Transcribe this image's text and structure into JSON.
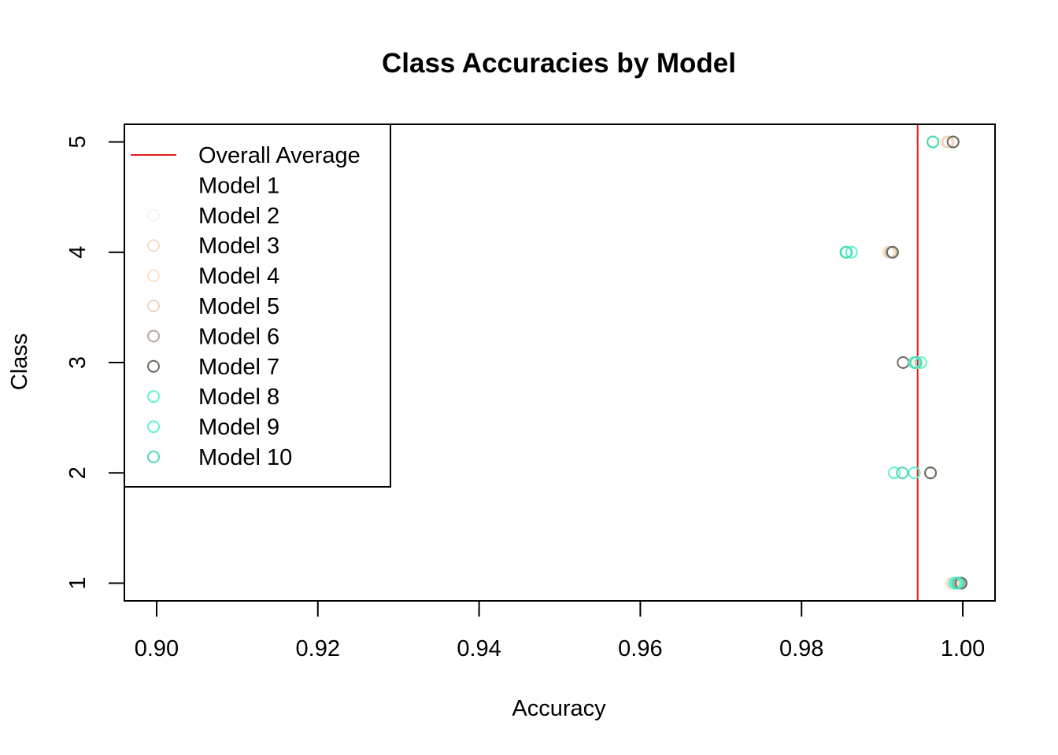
{
  "chart_data": {
    "type": "scatter",
    "title": "Class Accuracies by Model",
    "xlabel": "Accuracy",
    "ylabel": "Class",
    "xlim": [
      0.896,
      1.004
    ],
    "ylim": [
      0.84,
      5.16
    ],
    "x_ticks": [
      0.9,
      0.92,
      0.94,
      0.96,
      0.98,
      1.0
    ],
    "x_tick_labels": [
      "0.90",
      "0.92",
      "0.94",
      "0.96",
      "0.98",
      "1.00"
    ],
    "y_ticks": [
      1,
      2,
      3,
      4,
      5
    ],
    "y_tick_labels": [
      "1",
      "2",
      "3",
      "4",
      "5"
    ],
    "grid": false,
    "legend_position": "top-left",
    "reference_line": {
      "label": "Overall Average",
      "x": 0.9944,
      "color": "#e31a1c"
    },
    "series": [
      {
        "name": "Model 1",
        "color": "#ffffff",
        "points": [
          {
            "x": 0.999,
            "y": 1
          },
          {
            "x": 0.996,
            "y": 2
          },
          {
            "x": 0.9945,
            "y": 3
          },
          {
            "x": 0.9915,
            "y": 4
          },
          {
            "x": 0.9985,
            "y": 5
          }
        ]
      },
      {
        "name": "Model 2",
        "color": "#f6f3ee",
        "points": [
          {
            "x": 0.9992,
            "y": 1
          },
          {
            "x": 0.996,
            "y": 2
          },
          {
            "x": 0.9945,
            "y": 3
          },
          {
            "x": 0.991,
            "y": 4
          },
          {
            "x": 0.9985,
            "y": 5
          }
        ]
      },
      {
        "name": "Model 3",
        "color": "#f7dcc3",
        "points": [
          {
            "x": 0.9988,
            "y": 1
          },
          {
            "x": 0.996,
            "y": 2
          },
          {
            "x": 0.994,
            "y": 3
          },
          {
            "x": 0.9908,
            "y": 4
          },
          {
            "x": 0.998,
            "y": 5
          }
        ]
      },
      {
        "name": "Model 4",
        "color": "#fde2c8",
        "points": [
          {
            "x": 0.9986,
            "y": 1
          },
          {
            "x": 0.996,
            "y": 2
          },
          {
            "x": 0.994,
            "y": 3
          },
          {
            "x": 0.9908,
            "y": 4
          },
          {
            "x": 0.998,
            "y": 5
          }
        ]
      },
      {
        "name": "Model 5",
        "color": "#ecd3ba",
        "points": [
          {
            "x": 0.9994,
            "y": 1
          },
          {
            "x": 0.996,
            "y": 2
          },
          {
            "x": 0.9942,
            "y": 3
          },
          {
            "x": 0.991,
            "y": 4
          },
          {
            "x": 0.9982,
            "y": 5
          }
        ]
      },
      {
        "name": "Model 6",
        "color": "#b5a699",
        "points": [
          {
            "x": 0.9996,
            "y": 1
          },
          {
            "x": 0.996,
            "y": 2
          },
          {
            "x": 0.994,
            "y": 3
          },
          {
            "x": 0.9912,
            "y": 4
          },
          {
            "x": 0.9988,
            "y": 5
          }
        ]
      },
      {
        "name": "Model 7",
        "color": "#6b6b62",
        "points": [
          {
            "x": 0.9998,
            "y": 1
          },
          {
            "x": 0.996,
            "y": 2
          },
          {
            "x": 0.9926,
            "y": 3
          },
          {
            "x": 0.9913,
            "y": 4
          },
          {
            "x": 0.9988,
            "y": 5
          }
        ]
      },
      {
        "name": "Model 8",
        "color": "#62f5c7",
        "points": [
          {
            "x": 0.9992,
            "y": 1
          },
          {
            "x": 0.9915,
            "y": 2
          },
          {
            "x": 0.9948,
            "y": 3
          },
          {
            "x": 0.9856,
            "y": 4
          },
          {
            "x": 0.9963,
            "y": 5
          }
        ]
      },
      {
        "name": "Model 9",
        "color": "#5cf2d2",
        "points": [
          {
            "x": 0.999,
            "y": 1
          },
          {
            "x": 0.994,
            "y": 2
          },
          {
            "x": 0.994,
            "y": 3
          },
          {
            "x": 0.9862,
            "y": 4
          },
          {
            "x": 0.9963,
            "y": 5
          }
        ]
      },
      {
        "name": "Model 10",
        "color": "#4ed9b4",
        "points": [
          {
            "x": 0.9994,
            "y": 1
          },
          {
            "x": 0.9925,
            "y": 2
          },
          {
            "x": 0.9942,
            "y": 3
          },
          {
            "x": 0.9855,
            "y": 4
          },
          {
            "x": 0.9963,
            "y": 5
          }
        ]
      }
    ]
  }
}
